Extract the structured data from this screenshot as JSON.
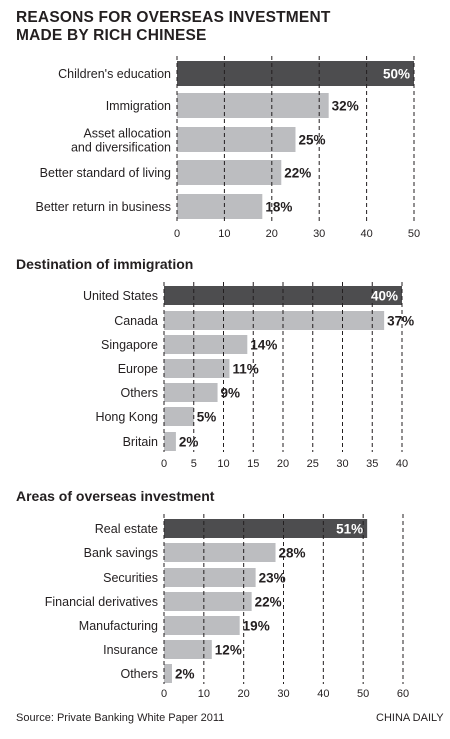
{
  "main_title_line1": "REASONS FOR OVERSEAS INVESTMENT",
  "main_title_line2": "MADE BY RICH CHINESE",
  "source": "Source: Private Banking White Paper 2011",
  "credit": "CHINA DAILY",
  "colors": {
    "highlight_bar": "#4d4d4f",
    "bar": "#bcbdc0",
    "grid": "#231f20",
    "text": "#231f20"
  },
  "chart_data": [
    {
      "type": "bar",
      "orientation": "horizontal",
      "title": "",
      "categories": [
        "Children's education",
        "Immigration",
        "Asset allocation and diversification",
        "Better standard of living",
        "Better return in business"
      ],
      "values": [
        50,
        32,
        25,
        22,
        18
      ],
      "labels": [
        "50%",
        "32%",
        "25%",
        "22%",
        "18%"
      ],
      "xticks": [
        "0",
        "10",
        "20",
        "30",
        "40",
        "50"
      ],
      "xlim": [
        0,
        50
      ],
      "grid": "vertical dashed"
    },
    {
      "type": "bar",
      "orientation": "horizontal",
      "title": "Destination of immigration",
      "categories": [
        "United States",
        "Canada",
        "Singapore",
        "Europe",
        "Others",
        "Hong Kong",
        "Britain"
      ],
      "values": [
        40,
        37,
        14,
        11,
        9,
        5,
        2
      ],
      "labels": [
        "40%",
        "37%",
        "14%",
        "11%",
        "9%",
        "5%",
        "2%"
      ],
      "xticks": [
        "0",
        "5",
        "10",
        "15",
        "20",
        "25",
        "30",
        "35",
        "40"
      ],
      "xlim": [
        0,
        40
      ],
      "grid": "vertical dashed"
    },
    {
      "type": "bar",
      "orientation": "horizontal",
      "title": "Areas of overseas investment",
      "categories": [
        "Real estate",
        "Bank savings",
        "Securities",
        "Financial derivatives",
        "Manufacturing",
        "Insurance",
        "Others"
      ],
      "values": [
        51,
        28,
        23,
        22,
        19,
        12,
        2
      ],
      "labels": [
        "51%",
        "28%",
        "23%",
        "22%",
        "19%",
        "12%",
        "2%"
      ],
      "xticks": [
        "0",
        "10",
        "20",
        "30",
        "40",
        "50",
        "60"
      ],
      "xlim": [
        0,
        60
      ],
      "grid": "vertical dashed"
    }
  ]
}
